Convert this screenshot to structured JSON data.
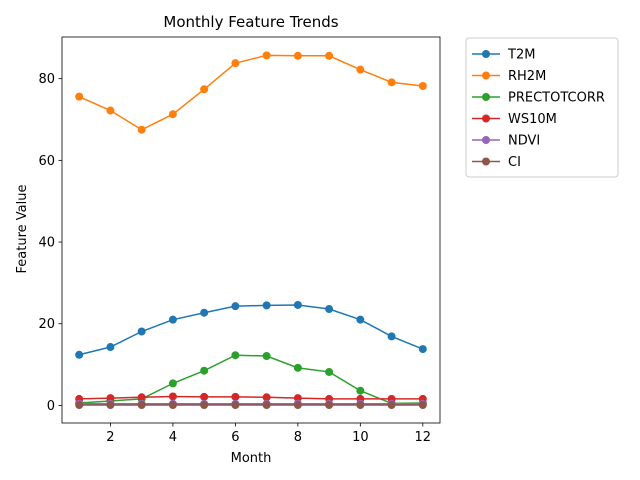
{
  "chart_data": {
    "type": "line",
    "title": "Monthly Feature Trends",
    "xlabel": "Month",
    "ylabel": "Feature Value",
    "x": [
      1,
      2,
      3,
      4,
      5,
      6,
      7,
      8,
      9,
      10,
      11,
      12
    ],
    "xlim": [
      0.45,
      12.55
    ],
    "ylim": [
      -4.3,
      90.2
    ],
    "xticks": [
      2,
      4,
      6,
      8,
      10,
      12
    ],
    "yticks": [
      0,
      20,
      40,
      60,
      80
    ],
    "grid": false,
    "legend_position": "outside-right-top",
    "series": [
      {
        "name": "T2M",
        "color": "#1f77b4",
        "values": [
          12.4,
          14.3,
          18.1,
          21.0,
          22.7,
          24.3,
          24.5,
          24.6,
          23.6,
          21.0,
          16.9,
          13.8
        ]
      },
      {
        "name": "RH2M",
        "color": "#ff7f0e",
        "values": [
          75.6,
          72.2,
          67.5,
          71.3,
          77.4,
          83.8,
          85.7,
          85.6,
          85.6,
          82.2,
          79.1,
          78.2
        ]
      },
      {
        "name": "PRECTOTCORR",
        "color": "#2ca02c",
        "values": [
          0.6,
          1.1,
          1.6,
          5.4,
          8.5,
          12.3,
          12.1,
          9.2,
          8.2,
          3.6,
          0.5,
          0.6
        ]
      },
      {
        "name": "WS10M",
        "color": "#d62728",
        "values": [
          1.6,
          1.8,
          2.0,
          2.2,
          2.1,
          2.1,
          2.0,
          1.8,
          1.6,
          1.6,
          1.6,
          1.6
        ]
      },
      {
        "name": "NDVI",
        "color": "#9467bd",
        "values": [
          0.4,
          0.4,
          0.4,
          0.4,
          0.4,
          0.4,
          0.4,
          0.4,
          0.4,
          0.4,
          0.4,
          0.4
        ]
      },
      {
        "name": "CI",
        "color": "#8c564b",
        "values": [
          0.1,
          0.1,
          0.1,
          0.1,
          0.1,
          0.1,
          0.1,
          0.1,
          0.1,
          0.1,
          0.1,
          0.1
        ]
      }
    ]
  }
}
